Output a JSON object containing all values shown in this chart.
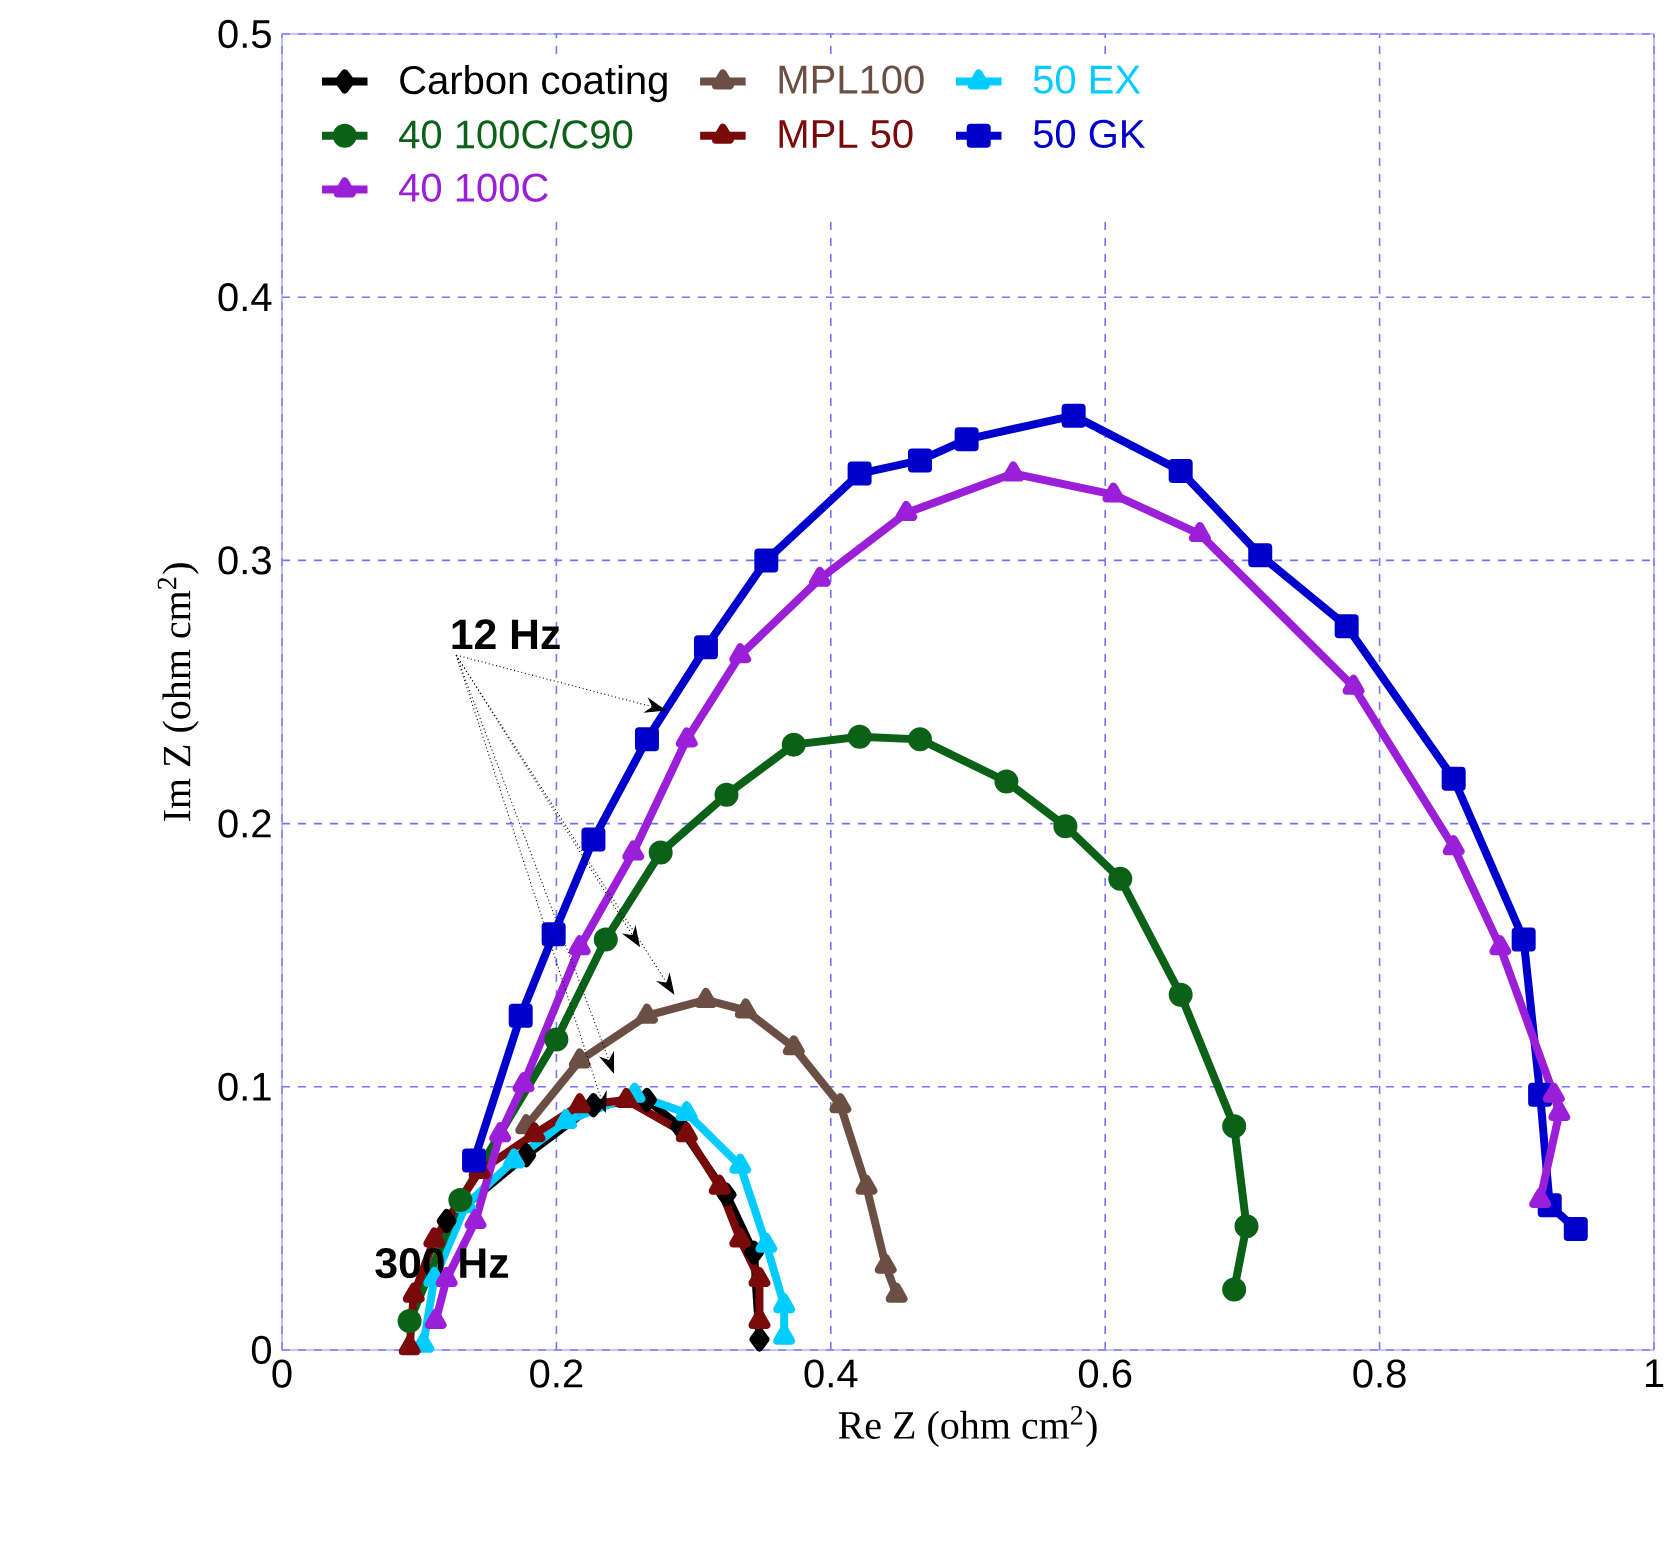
{
  "chart_data": {
    "type": "line",
    "xlabel": "Re Z (ohm cm$^{2}$)",
    "ylabel": "Im Z (ohm cm$^{2}$)",
    "xlim": [
      0,
      1
    ],
    "ylim": [
      0,
      0.5
    ],
    "xticks": [
      0,
      0.2,
      0.4,
      0.6,
      0.8,
      1
    ],
    "yticks": [
      0,
      0.1,
      0.2,
      0.3,
      0.4,
      0.5
    ],
    "grid": true,
    "legend": "top",
    "line_style": "solid",
    "annotations": [
      {
        "text": "12 Hz",
        "x": 0.28,
        "y": 0.243
      },
      "300 Hz"
    ],
    "series": [
      {
        "name": "Carbon coating",
        "color": "#000000",
        "marker": "diamond",
        "x": [
          0.12,
          0.178,
          0.227,
          0.266,
          0.29,
          0.324,
          0.344,
          0.348
        ],
        "values": [
          0.049,
          0.074,
          0.093,
          0.095,
          0.085,
          0.059,
          0.037,
          0.004
        ]
      },
      {
        "name": "MPL100",
        "color": "#6b4f45",
        "marker": "triangle",
        "x": [
          0.178,
          0.217,
          0.266,
          0.309,
          0.338,
          0.373,
          0.407,
          0.426,
          0.44,
          0.448
        ],
        "values": [
          0.085,
          0.11,
          0.127,
          0.133,
          0.129,
          0.115,
          0.093,
          0.062,
          0.032,
          0.021
        ]
      },
      {
        "name": "50 EX",
        "color": "#00ccff",
        "marker": "triangle",
        "x": [
          0.103,
          0.111,
          0.134,
          0.169,
          0.207,
          0.257,
          0.295,
          0.334,
          0.353,
          0.366,
          0.366
        ],
        "values": [
          0.002,
          0.027,
          0.055,
          0.072,
          0.087,
          0.097,
          0.09,
          0.07,
          0.04,
          0.017,
          0.005
        ]
      },
      {
        "name": "40 100C/C90",
        "color": "#0b6118",
        "marker": "circle",
        "x": [
          0.093,
          0.13,
          0.2,
          0.236,
          0.276,
          0.324,
          0.373,
          0.421,
          0.465,
          0.528,
          0.571,
          0.611,
          0.655,
          0.694,
          0.703,
          0.694
        ],
        "values": [
          0.011,
          0.057,
          0.118,
          0.156,
          0.189,
          0.211,
          0.23,
          0.233,
          0.232,
          0.216,
          0.199,
          0.179,
          0.135,
          0.085,
          0.047,
          0.023
        ]
      },
      {
        "name": "MPL 50",
        "color": "#7a0a0a",
        "marker": "triangle",
        "x": [
          0.093,
          0.096,
          0.111,
          0.144,
          0.184,
          0.217,
          0.251,
          0.295,
          0.319,
          0.334,
          0.348,
          0.348
        ],
        "values": [
          0.001,
          0.021,
          0.042,
          0.068,
          0.082,
          0.093,
          0.095,
          0.082,
          0.062,
          0.042,
          0.027,
          0.011
        ]
      },
      {
        "name": "50 GK",
        "color": "#0000cc",
        "marker": "square",
        "x": [
          0.14,
          0.174,
          0.198,
          0.227,
          0.266,
          0.309,
          0.353,
          0.421,
          0.465,
          0.499,
          0.577,
          0.655,
          0.713,
          0.776,
          0.854,
          0.905,
          0.917,
          0.924,
          0.943
        ],
        "values": [
          0.072,
          0.127,
          0.158,
          0.194,
          0.232,
          0.267,
          0.3,
          0.333,
          0.338,
          0.346,
          0.355,
          0.334,
          0.302,
          0.275,
          0.217,
          0.156,
          0.097,
          0.055,
          0.046
        ]
      },
      {
        "name": "40 100C",
        "color": "#9b1fd8",
        "marker": "triangle",
        "x": [
          0.112,
          0.12,
          0.141,
          0.159,
          0.176,
          0.217,
          0.256,
          0.295,
          0.334,
          0.392,
          0.455,
          0.533,
          0.606,
          0.669,
          0.781,
          0.854,
          0.888,
          0.927,
          0.931,
          0.917
        ],
        "values": [
          0.011,
          0.027,
          0.049,
          0.082,
          0.101,
          0.153,
          0.189,
          0.232,
          0.264,
          0.293,
          0.318,
          0.333,
          0.325,
          0.31,
          0.252,
          0.191,
          0.153,
          0.097,
          0.09,
          0.057
        ]
      }
    ]
  }
}
